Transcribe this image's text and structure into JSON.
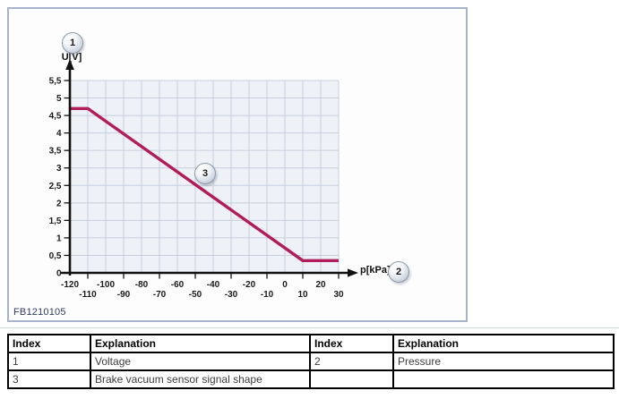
{
  "figure": {
    "id": "FB1210105",
    "callouts": {
      "voltage": "1",
      "pressure": "2",
      "signal": "3"
    }
  },
  "chart_data": {
    "type": "line",
    "xlabel": "p[kPa]",
    "ylabel": "U[V]",
    "xlim": [
      -120,
      30
    ],
    "ylim": [
      0,
      5.5
    ],
    "x_ticks": [
      -120,
      -110,
      -100,
      -90,
      -80,
      -70,
      -60,
      -50,
      -40,
      -30,
      -20,
      -10,
      0,
      10,
      20,
      30
    ],
    "x_tick_labels": [
      "-120",
      "-110",
      "-100",
      "-90",
      "-80",
      "-70",
      "-60",
      "-50",
      "-40",
      "-30",
      "-20",
      "-10",
      "0",
      "10",
      "20",
      "30"
    ],
    "y_ticks": [
      0,
      0.5,
      1,
      1.5,
      2,
      2.5,
      3,
      3.5,
      4,
      4.5,
      5,
      5.5
    ],
    "y_tick_labels": [
      "0",
      "0,5",
      "1",
      "1,5",
      "2",
      "2,5",
      "3",
      "3,5",
      "4",
      "4,5",
      "5",
      "5,5"
    ],
    "grid": true,
    "legend_position": "none",
    "series": [
      {
        "name": "Brake vacuum sensor signal shape",
        "x": [
          -120,
          -110,
          10,
          30
        ],
        "y": [
          4.7,
          4.7,
          0.35,
          0.35
        ],
        "color": "#b01d5a"
      }
    ]
  },
  "table": {
    "headers": [
      "Index",
      "Explanation",
      "Index",
      "Explanation"
    ],
    "rows": [
      [
        "1",
        "Voltage",
        "2",
        "Pressure"
      ],
      [
        "3",
        "Brake vacuum sensor signal shape",
        "",
        ""
      ]
    ]
  },
  "colors": {
    "curve": "#b01d5a",
    "grid_bg": "#eef1f6",
    "grid_line": "#c7cfdd",
    "axis": "#111111",
    "frame_border": "#a6b4cb",
    "figure_id_text": "#2e3a63"
  }
}
